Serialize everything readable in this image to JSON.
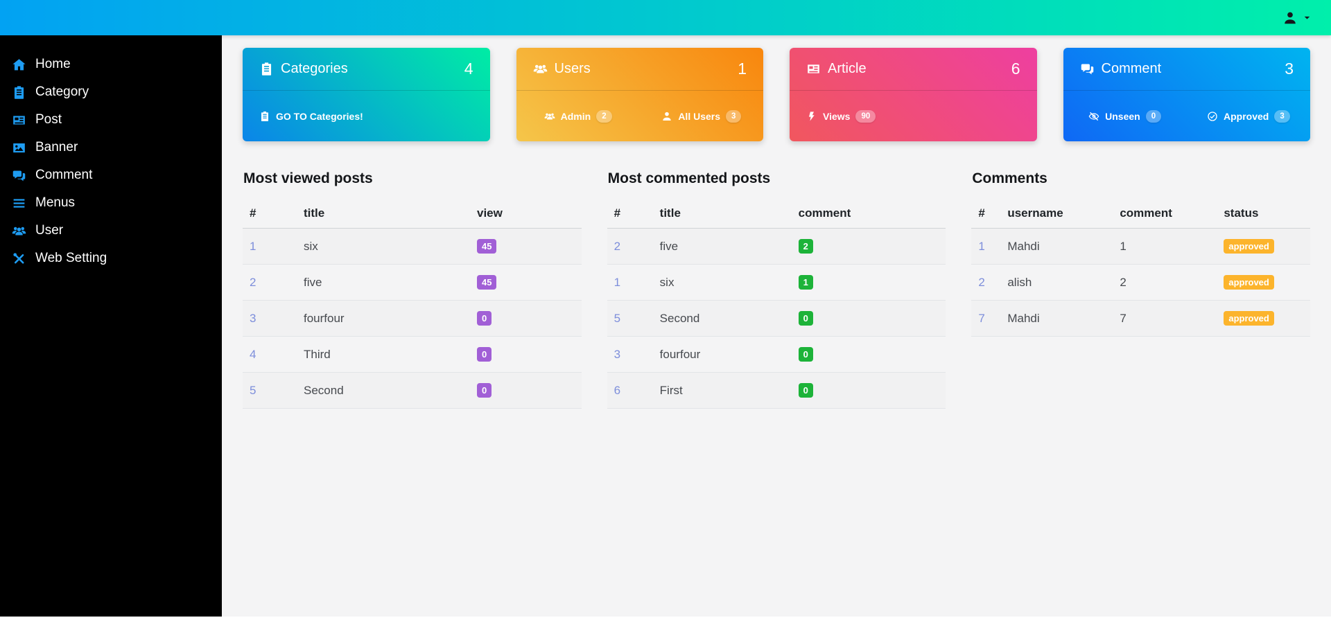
{
  "topbar": {
    "user_icon": "user-icon",
    "caret_icon": "caret-down-icon"
  },
  "sidebar": {
    "items": [
      {
        "label": "Home",
        "icon": "home-icon"
      },
      {
        "label": "Category",
        "icon": "category-icon"
      },
      {
        "label": "Post",
        "icon": "post-icon"
      },
      {
        "label": "Banner",
        "icon": "banner-icon"
      },
      {
        "label": "Comment",
        "icon": "comment-icon"
      },
      {
        "label": "Menus",
        "icon": "menus-icon"
      },
      {
        "label": "User",
        "icon": "user-group-icon"
      },
      {
        "label": "Web Setting",
        "icon": "web-setting-icon"
      }
    ]
  },
  "cards": [
    {
      "title": "Categories",
      "icon": "categories-icon",
      "count": "4",
      "gradient": [
        "#0a85e9",
        "#00eda4"
      ],
      "links": [
        {
          "icon": "categories-icon",
          "label": "GO TO Categories!"
        }
      ]
    },
    {
      "title": "Users",
      "icon": "users-icon",
      "count": "1",
      "gradient": [
        "#f5c64a",
        "#f8860d"
      ],
      "links": [
        {
          "icon": "users-cog-icon",
          "label": "Admin",
          "badge": "2"
        },
        {
          "icon": "single-user-icon",
          "label": "All Users",
          "badge": "3"
        }
      ]
    },
    {
      "title": "Article",
      "icon": "article-icon",
      "count": "6",
      "gradient": [
        "#f1575e",
        "#ee3fa0"
      ],
      "links": [
        {
          "icon": "bolt-icon",
          "label": "Views",
          "badge": "90"
        }
      ]
    },
    {
      "title": "Comment",
      "icon": "comments-icon",
      "count": "3",
      "gradient": [
        "#0f68f5",
        "#00b4f0"
      ],
      "links": [
        {
          "icon": "eye-slash-icon",
          "label": "Unseen",
          "badge": "0"
        },
        {
          "icon": "check-circle-icon",
          "label": "Approved",
          "badge": "3"
        }
      ]
    }
  ],
  "tables": [
    {
      "title": "Most viewed posts",
      "headers": [
        "#",
        "title",
        "view"
      ],
      "badge_color": "#a15fd6",
      "rows": [
        {
          "cells": [
            "1",
            "six"
          ],
          "badge": "45"
        },
        {
          "cells": [
            "2",
            "five"
          ],
          "badge": "45"
        },
        {
          "cells": [
            "3",
            "fourfour"
          ],
          "badge": "0"
        },
        {
          "cells": [
            "4",
            "Third"
          ],
          "badge": "0"
        },
        {
          "cells": [
            "5",
            "Second"
          ],
          "badge": "0"
        }
      ]
    },
    {
      "title": "Most commented posts",
      "headers": [
        "#",
        "title",
        "comment"
      ],
      "badge_color": "#1db339",
      "rows": [
        {
          "cells": [
            "2",
            "five"
          ],
          "badge": "2"
        },
        {
          "cells": [
            "1",
            "six"
          ],
          "badge": "1"
        },
        {
          "cells": [
            "5",
            "Second"
          ],
          "badge": "0"
        },
        {
          "cells": [
            "3",
            "fourfour"
          ],
          "badge": "0"
        },
        {
          "cells": [
            "6",
            "First"
          ],
          "badge": "0"
        }
      ]
    },
    {
      "title": "Comments",
      "headers": [
        "#",
        "username",
        "comment",
        "status"
      ],
      "badge_color": "#fcb42c",
      "rows": [
        {
          "cells": [
            "1",
            "Mahdi",
            "1"
          ],
          "badge": "approved"
        },
        {
          "cells": [
            "2",
            "alish",
            "2"
          ],
          "badge": "approved"
        },
        {
          "cells": [
            "7",
            "Mahdi",
            "7"
          ],
          "badge": "approved"
        }
      ]
    }
  ]
}
